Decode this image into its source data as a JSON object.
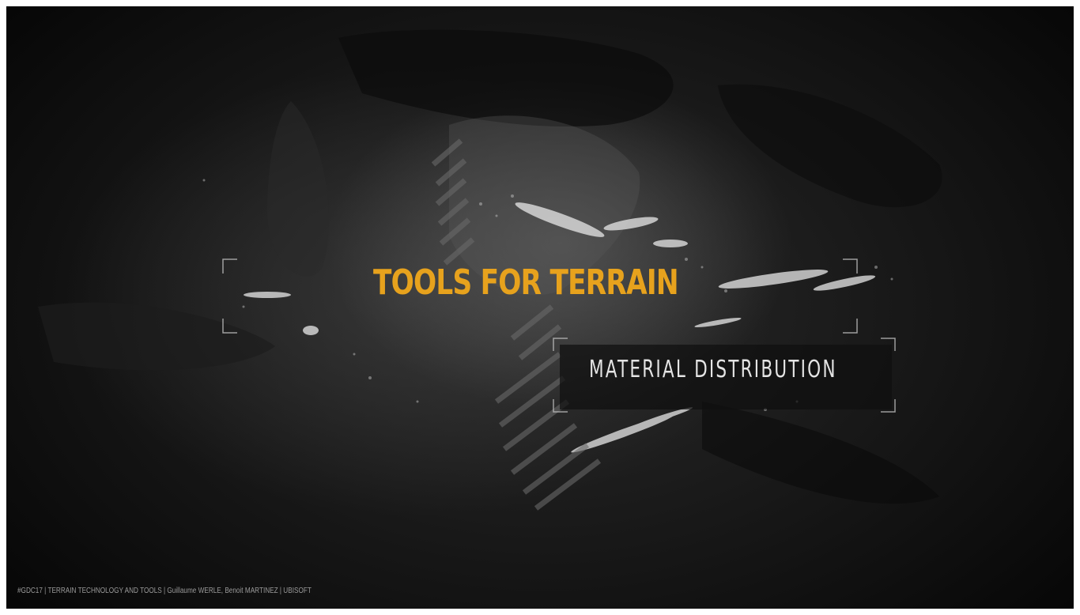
{
  "slide": {
    "title": "TOOLS FOR TERRAIN",
    "subtitle": "MATERIAL DISTRIBUTION",
    "footer": "#GDC17 | TERRAIN TECHNOLOGY AND TOOLS | Guillaume WERLE, Benoit MARTINEZ | UBISOFT"
  },
  "colors": {
    "accent": "#e7a21d",
    "subtitle_text": "#e4e4e4",
    "background": "#111111"
  }
}
